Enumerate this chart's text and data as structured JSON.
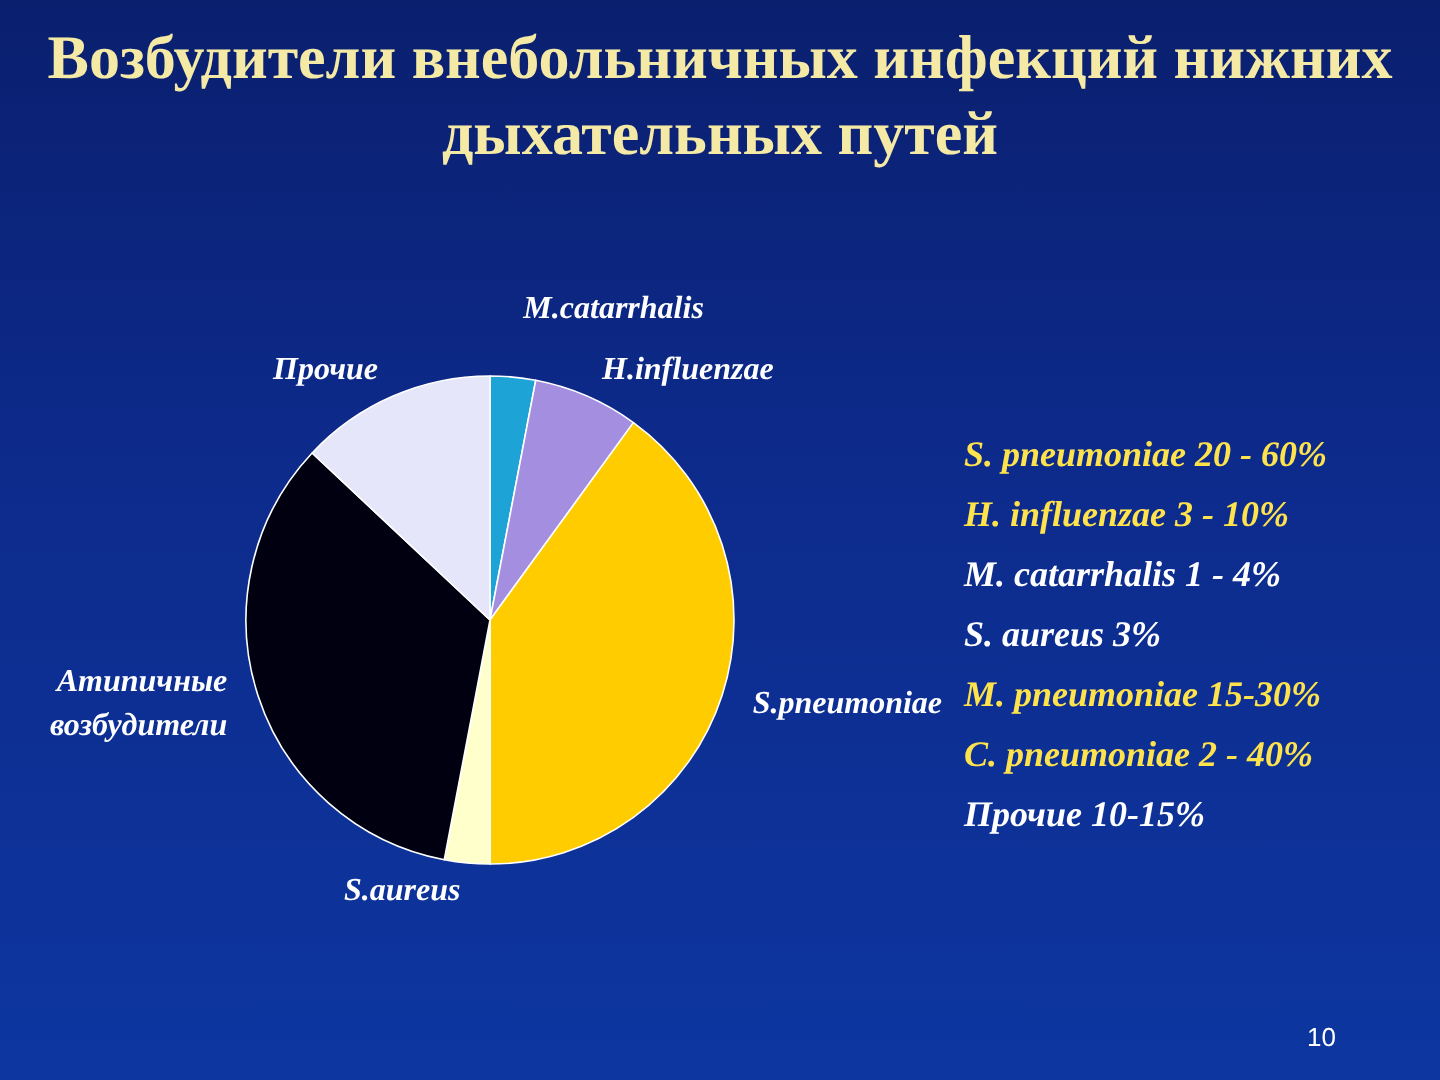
{
  "chart_data": {
    "type": "pie",
    "title": "Возбудители внебольничных инфекций нижних дыхательных путей",
    "categories": [
      "M.catarrhalis",
      "H.influenzae",
      "S.pneumoniae",
      "S.aureus",
      "Атипичные возбудители",
      "Прочие"
    ],
    "values": [
      3,
      7,
      40,
      3,
      34,
      13
    ],
    "colors": [
      "#1ea3d6",
      "#a38ee0",
      "#ffcc00",
      "#ffffcc",
      "#000010",
      "#e6e6fa"
    ],
    "legend": false,
    "annotations": [
      "S. pneumoniae 20 - 60%",
      "H. influenzae 3 - 10%",
      "M. catarrhalis 1 - 4%",
      "S. aureus 3%",
      "M. pneumoniae 15-30%",
      "C. pneumoniae 2 - 40%",
      "Прочие 10-15%",
      "10"
    ]
  }
}
